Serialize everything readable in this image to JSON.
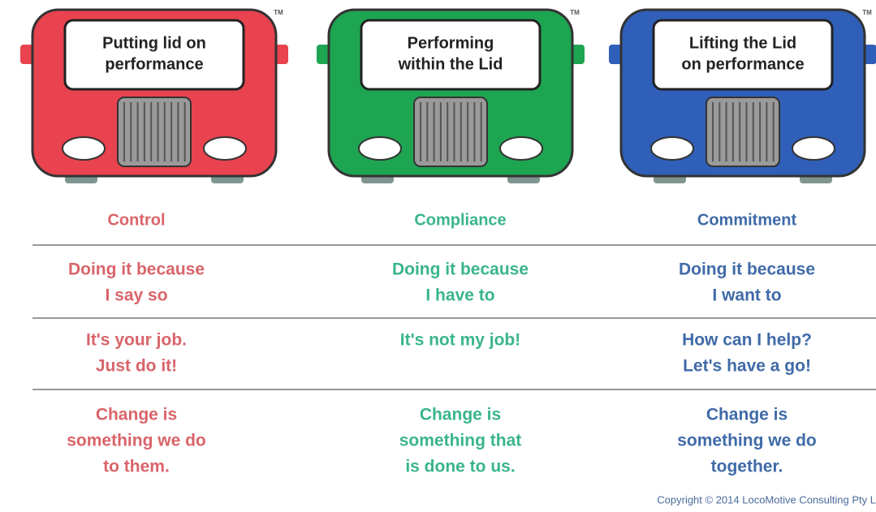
{
  "columns": [
    {
      "sign": [
        "Putting lid on",
        "performance"
      ],
      "tm": "TM",
      "heading": "Control",
      "rows": [
        [
          "Doing it because",
          "I say so"
        ],
        [
          "It's your job.",
          "Just do it!"
        ],
        [
          "Change is",
          "something we do",
          "to them."
        ]
      ]
    },
    {
      "sign": [
        "Performing",
        "within the Lid"
      ],
      "tm": "TM",
      "heading": "Compliance",
      "rows": [
        [
          "Doing it because",
          "I have to"
        ],
        [
          "It's not my job!"
        ],
        [
          "Change is",
          "something that",
          "is done to us."
        ]
      ]
    },
    {
      "sign": [
        "Lifting the Lid",
        "on performance"
      ],
      "tm": "TM",
      "heading": "Commitment",
      "rows": [
        [
          "Doing it because",
          "I want to"
        ],
        [
          "How can I help?",
          "Let's have a go!"
        ],
        [
          "Change is",
          "something we do",
          "together."
        ]
      ]
    }
  ],
  "copyright": "Copyright © 2014 LocoMotive Consulting Pty L"
}
